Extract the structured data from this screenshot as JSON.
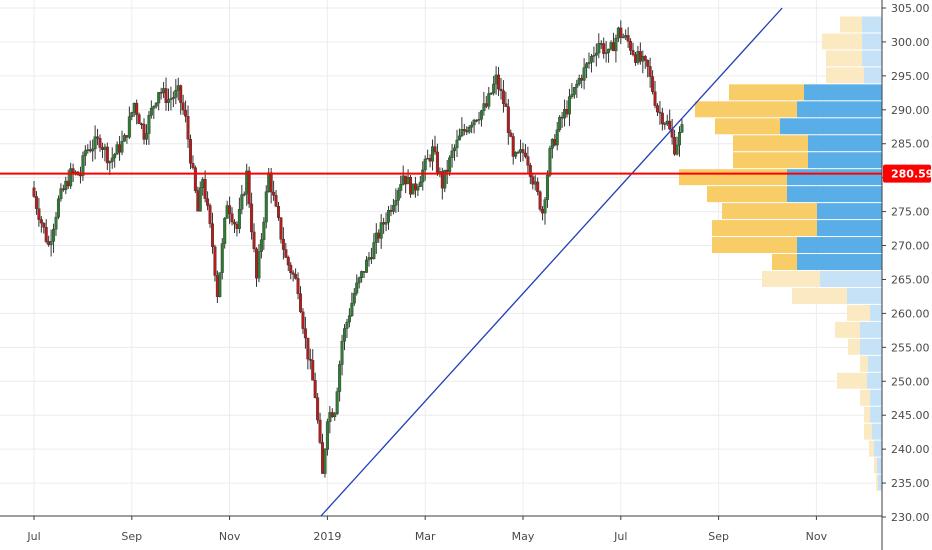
{
  "chart_data": {
    "type": "candlestick",
    "y_axis": {
      "min": 230,
      "max": 305,
      "ticks": [
        "305.00",
        "300.00",
        "295.00",
        "290.00",
        "285.00",
        "280.00",
        "275.00",
        "270.00",
        "265.00",
        "260.00",
        "255.00",
        "250.00",
        "245.00",
        "240.00",
        "235.00",
        "230.00"
      ]
    },
    "x_axis": {
      "ticks": [
        {
          "label": "Jul",
          "month_index": 0
        },
        {
          "label": "Sep",
          "month_index": 2
        },
        {
          "label": "Nov",
          "month_index": 4
        },
        {
          "label": "2019",
          "month_index": 6
        },
        {
          "label": "Mar",
          "month_index": 8
        },
        {
          "label": "May",
          "month_index": 10
        },
        {
          "label": "Jul",
          "month_index": 12
        },
        {
          "label": "Sep",
          "month_index": 14
        },
        {
          "label": "Nov",
          "month_index": 16
        }
      ]
    },
    "horizontal_line": {
      "price": 280.59,
      "label": "280.59",
      "color": "#ff0000"
    },
    "trend_line": {
      "color": "#1e3fb8",
      "points": [
        {
          "month_index": 5.85,
          "price": 230
        },
        {
          "month_index": 15.3,
          "price": 305
        }
      ]
    },
    "colors": {
      "up": "#2e7d32",
      "down": "#b71c1c",
      "vp_up": "#5aaee8",
      "vp_down": "#f8cd68",
      "vp_up_light": "#c6e2f7",
      "vp_down_light": "#fbe9c2"
    },
    "volume_profile": [
      {
        "price": 302.5,
        "up": 20,
        "down": 22,
        "strong": false
      },
      {
        "price": 300.0,
        "up": 20,
        "down": 40,
        "strong": false
      },
      {
        "price": 297.5,
        "up": 20,
        "down": 36,
        "strong": false
      },
      {
        "price": 295.0,
        "up": 18,
        "down": 38,
        "strong": false
      },
      {
        "price": 292.5,
        "up": 78,
        "down": 75,
        "strong": true
      },
      {
        "price": 290.0,
        "up": 85,
        "down": 102,
        "strong": true
      },
      {
        "price": 287.5,
        "up": 102,
        "down": 65,
        "strong": true
      },
      {
        "price": 285.0,
        "up": 74,
        "down": 75,
        "strong": true
      },
      {
        "price": 282.5,
        "up": 74,
        "down": 75,
        "strong": true
      },
      {
        "price": 280.0,
        "up": 95,
        "down": 108,
        "strong": true
      },
      {
        "price": 277.5,
        "up": 95,
        "down": 80,
        "strong": true
      },
      {
        "price": 275.0,
        "up": 65,
        "down": 95,
        "strong": true
      },
      {
        "price": 272.5,
        "up": 65,
        "down": 105,
        "strong": true
      },
      {
        "price": 270.0,
        "up": 85,
        "down": 85,
        "strong": true
      },
      {
        "price": 267.5,
        "up": 85,
        "down": 25,
        "strong": true
      },
      {
        "price": 265.0,
        "up": 62,
        "down": 58,
        "strong": false
      },
      {
        "price": 262.5,
        "up": 35,
        "down": 55,
        "strong": false
      },
      {
        "price": 260.0,
        "up": 12,
        "down": 23,
        "strong": false
      },
      {
        "price": 257.5,
        "up": 22,
        "down": 25,
        "strong": false
      },
      {
        "price": 255.0,
        "up": 22,
        "down": 12,
        "strong": false
      },
      {
        "price": 252.5,
        "up": 14,
        "down": 8,
        "strong": false
      },
      {
        "price": 250.0,
        "up": 15,
        "down": 30,
        "strong": false
      },
      {
        "price": 247.5,
        "up": 12,
        "down": 10,
        "strong": false
      },
      {
        "price": 245.0,
        "up": 12,
        "down": 6,
        "strong": false
      },
      {
        "price": 242.5,
        "up": 10,
        "down": 8,
        "strong": false
      },
      {
        "price": 240.0,
        "up": 8,
        "down": 5,
        "strong": false
      },
      {
        "price": 237.5,
        "up": 5,
        "down": 3,
        "strong": false
      },
      {
        "price": 235.0,
        "up": 4,
        "down": 2,
        "strong": false
      }
    ],
    "series_path": [
      [
        0.0,
        278.5
      ],
      [
        0.2,
        273.5
      ],
      [
        0.35,
        270.0
      ],
      [
        0.55,
        276.5
      ],
      [
        0.8,
        280.5
      ],
      [
        1.0,
        280.5
      ],
      [
        1.1,
        284.0
      ],
      [
        1.4,
        285.5
      ],
      [
        1.6,
        282.5
      ],
      [
        1.9,
        285.5
      ],
      [
        2.1,
        291.0
      ],
      [
        2.3,
        286.5
      ],
      [
        2.6,
        293.0
      ],
      [
        2.8,
        291.5
      ],
      [
        3.0,
        292.5
      ],
      [
        3.15,
        288.5
      ],
      [
        3.4,
        275.0
      ],
      [
        3.5,
        280.0
      ],
      [
        3.7,
        270.0
      ],
      [
        3.8,
        263.0
      ],
      [
        4.0,
        276.5
      ],
      [
        4.2,
        272.5
      ],
      [
        4.4,
        280.5
      ],
      [
        4.6,
        265.0
      ],
      [
        4.85,
        280.5
      ],
      [
        5.0,
        275.0
      ],
      [
        5.2,
        268.0
      ],
      [
        5.45,
        264.0
      ],
      [
        5.6,
        256.0
      ],
      [
        5.8,
        248.0
      ],
      [
        5.95,
        236.0
      ],
      [
        6.05,
        245.0
      ],
      [
        6.2,
        246.0
      ],
      [
        6.35,
        256.0
      ],
      [
        6.6,
        263.0
      ],
      [
        7.0,
        270.0
      ],
      [
        7.3,
        275.0
      ],
      [
        7.6,
        280.5
      ],
      [
        7.8,
        278.0
      ],
      [
        8.0,
        281.0
      ],
      [
        8.2,
        284.0
      ],
      [
        8.4,
        279.0
      ],
      [
        8.6,
        283.5
      ],
      [
        8.8,
        286.5
      ],
      [
        9.0,
        288.5
      ],
      [
        9.3,
        290.5
      ],
      [
        9.5,
        294.5
      ],
      [
        9.7,
        290.0
      ],
      [
        9.85,
        282.5
      ],
      [
        10.1,
        284.0
      ],
      [
        10.3,
        278.5
      ],
      [
        10.45,
        275.0
      ],
      [
        10.6,
        283.5
      ],
      [
        10.8,
        288.0
      ],
      [
        11.0,
        291.0
      ],
      [
        11.2,
        294.5
      ],
      [
        11.4,
        297.0
      ],
      [
        11.6,
        300.0
      ],
      [
        11.8,
        298.0
      ],
      [
        12.0,
        301.5
      ],
      [
        12.2,
        300.0
      ],
      [
        12.35,
        298.0
      ],
      [
        12.6,
        296.0
      ],
      [
        12.8,
        290.0
      ],
      [
        13.0,
        288.0
      ],
      [
        13.15,
        284.5
      ],
      [
        13.3,
        287.0
      ]
    ]
  }
}
